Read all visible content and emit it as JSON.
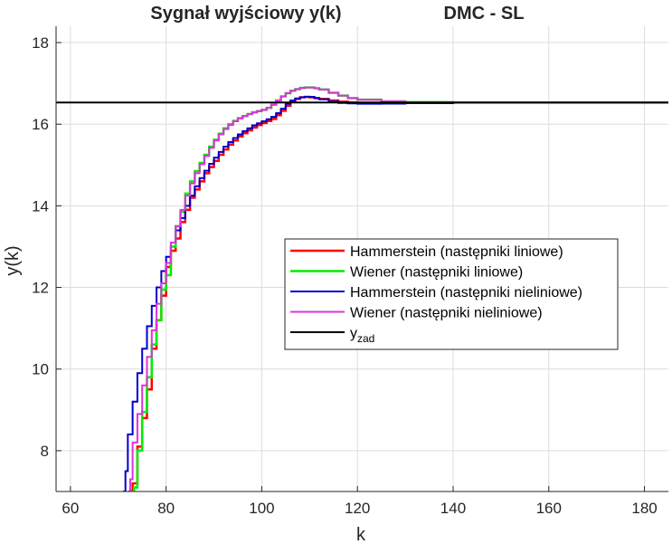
{
  "chart_data": {
    "type": "line",
    "title_left": "Sygnał wyjściowy y(k)",
    "title_right": "DMC - SL",
    "xlabel": "k",
    "ylabel": "y(k)",
    "xlim": [
      57,
      185
    ],
    "ylim": [
      7,
      18.4
    ],
    "xticks": [
      60,
      80,
      100,
      120,
      140,
      160,
      180
    ],
    "yticks": [
      8,
      10,
      12,
      14,
      16,
      18
    ],
    "grid": true,
    "legend_position": "center-right",
    "setpoint": 16.53,
    "series": [
      {
        "name": "Hammerstein (następniki liniowe)",
        "color": "#ff0000",
        "width": 2.5,
        "step": true,
        "points": [
          [
            72.5,
            7.0
          ],
          [
            73,
            7.2
          ],
          [
            74,
            8.1
          ],
          [
            75,
            8.8
          ],
          [
            76,
            9.5
          ],
          [
            77,
            10.5
          ],
          [
            78,
            11.2
          ],
          [
            79,
            11.8
          ],
          [
            80,
            12.5
          ],
          [
            81,
            12.9
          ],
          [
            82,
            13.2
          ],
          [
            83,
            13.6
          ],
          [
            84,
            13.9
          ],
          [
            85,
            14.2
          ],
          [
            86,
            14.4
          ],
          [
            87,
            14.6
          ],
          [
            88,
            14.8
          ],
          [
            89,
            14.95
          ],
          [
            90,
            15.1
          ],
          [
            91,
            15.25
          ],
          [
            92,
            15.38
          ],
          [
            93,
            15.5
          ],
          [
            94,
            15.6
          ],
          [
            95,
            15.7
          ],
          [
            96,
            15.78
          ],
          [
            97,
            15.85
          ],
          [
            98,
            15.92
          ],
          [
            99,
            15.98
          ],
          [
            100,
            16.03
          ],
          [
            101,
            16.08
          ],
          [
            102,
            16.13
          ],
          [
            103,
            16.22
          ],
          [
            104,
            16.33
          ],
          [
            105,
            16.45
          ],
          [
            106,
            16.55
          ],
          [
            107,
            16.62
          ],
          [
            108,
            16.66
          ],
          [
            109,
            16.67
          ],
          [
            110,
            16.66
          ],
          [
            111,
            16.64
          ],
          [
            112,
            16.62
          ],
          [
            114,
            16.58
          ],
          [
            116,
            16.55
          ],
          [
            118,
            16.53
          ],
          [
            120,
            16.52
          ],
          [
            125,
            16.515
          ],
          [
            130,
            16.52
          ],
          [
            140,
            16.53
          ],
          [
            185,
            16.53
          ]
        ]
      },
      {
        "name": "Wiener (następniki liniowe)",
        "color": "#00ee00",
        "width": 2.5,
        "step": true,
        "points": [
          [
            72.8,
            7.0
          ],
          [
            73.3,
            7.1
          ],
          [
            74,
            8.0
          ],
          [
            75,
            8.95
          ],
          [
            76,
            9.8
          ],
          [
            77,
            10.6
          ],
          [
            78,
            11.2
          ],
          [
            79,
            11.95
          ],
          [
            80,
            12.3
          ],
          [
            81,
            13.0
          ],
          [
            82,
            13.5
          ],
          [
            83,
            13.85
          ],
          [
            84,
            14.3
          ],
          [
            85,
            14.6
          ],
          [
            86,
            14.85
          ],
          [
            87,
            15.05
          ],
          [
            88,
            15.25
          ],
          [
            89,
            15.45
          ],
          [
            90,
            15.62
          ],
          [
            91,
            15.77
          ],
          [
            92,
            15.9
          ],
          [
            93,
            16.0
          ],
          [
            94,
            16.08
          ],
          [
            95,
            16.15
          ],
          [
            96,
            16.2
          ],
          [
            97,
            16.25
          ],
          [
            98,
            16.29
          ],
          [
            99,
            16.32
          ],
          [
            100,
            16.35
          ],
          [
            101,
            16.4
          ],
          [
            102,
            16.48
          ],
          [
            103,
            16.58
          ],
          [
            104,
            16.68
          ],
          [
            105,
            16.76
          ],
          [
            106,
            16.82
          ],
          [
            107,
            16.86
          ],
          [
            108,
            16.89
          ],
          [
            109,
            16.9
          ],
          [
            110,
            16.9
          ],
          [
            111,
            16.88
          ],
          [
            112,
            16.85
          ],
          [
            114,
            16.77
          ],
          [
            116,
            16.7
          ],
          [
            118,
            16.64
          ],
          [
            120,
            16.6
          ],
          [
            125,
            16.56
          ],
          [
            130,
            16.54
          ],
          [
            140,
            16.53
          ],
          [
            185,
            16.53
          ]
        ]
      },
      {
        "name": "Hammerstein (następniki nieliniowe)",
        "color": "#0000cc",
        "width": 2,
        "step": true,
        "points": [
          [
            71,
            7.0
          ],
          [
            71.5,
            7.5
          ],
          [
            72,
            8.4
          ],
          [
            73,
            9.2
          ],
          [
            74,
            9.9
          ],
          [
            75,
            10.5
          ],
          [
            76,
            11.05
          ],
          [
            77,
            11.55
          ],
          [
            78,
            12.0
          ],
          [
            79,
            12.4
          ],
          [
            80,
            12.75
          ],
          [
            81,
            13.1
          ],
          [
            82,
            13.4
          ],
          [
            83,
            13.7
          ],
          [
            84,
            14.0
          ],
          [
            85,
            14.25
          ],
          [
            86,
            14.48
          ],
          [
            87,
            14.68
          ],
          [
            88,
            14.86
          ],
          [
            89,
            15.03
          ],
          [
            90,
            15.18
          ],
          [
            91,
            15.32
          ],
          [
            92,
            15.45
          ],
          [
            93,
            15.56
          ],
          [
            94,
            15.66
          ],
          [
            95,
            15.75
          ],
          [
            96,
            15.83
          ],
          [
            97,
            15.9
          ],
          [
            98,
            15.97
          ],
          [
            99,
            16.02
          ],
          [
            100,
            16.07
          ],
          [
            101,
            16.12
          ],
          [
            102,
            16.18
          ],
          [
            103,
            16.27
          ],
          [
            104,
            16.38
          ],
          [
            105,
            16.5
          ],
          [
            106,
            16.58
          ],
          [
            107,
            16.63
          ],
          [
            108,
            16.66
          ],
          [
            109,
            16.67
          ],
          [
            110,
            16.67
          ],
          [
            111,
            16.64
          ],
          [
            112,
            16.61
          ],
          [
            114,
            16.56
          ],
          [
            116,
            16.52
          ],
          [
            118,
            16.51
          ],
          [
            120,
            16.5
          ],
          [
            125,
            16.505
          ],
          [
            130,
            16.515
          ],
          [
            140,
            16.525
          ],
          [
            185,
            16.53
          ]
        ]
      },
      {
        "name": "Wiener (następniki nieliniowe)",
        "color": "#dd33dd",
        "width": 2,
        "step": true,
        "points": [
          [
            72,
            7.0
          ],
          [
            72.5,
            7.3
          ],
          [
            73,
            8.2
          ],
          [
            74,
            8.9
          ],
          [
            75,
            9.6
          ],
          [
            76,
            10.3
          ],
          [
            77,
            10.95
          ],
          [
            78,
            11.6
          ],
          [
            79,
            12.1
          ],
          [
            80,
            12.6
          ],
          [
            81,
            13.1
          ],
          [
            82,
            13.5
          ],
          [
            83,
            13.9
          ],
          [
            84,
            14.25
          ],
          [
            85,
            14.55
          ],
          [
            86,
            14.8
          ],
          [
            87,
            15.02
          ],
          [
            88,
            15.22
          ],
          [
            89,
            15.42
          ],
          [
            90,
            15.6
          ],
          [
            91,
            15.75
          ],
          [
            92,
            15.88
          ],
          [
            93,
            15.98
          ],
          [
            94,
            16.07
          ],
          [
            95,
            16.14
          ],
          [
            96,
            16.2
          ],
          [
            97,
            16.25
          ],
          [
            98,
            16.29
          ],
          [
            99,
            16.32
          ],
          [
            100,
            16.35
          ],
          [
            101,
            16.4
          ],
          [
            102,
            16.48
          ],
          [
            103,
            16.58
          ],
          [
            104,
            16.68
          ],
          [
            105,
            16.76
          ],
          [
            106,
            16.82
          ],
          [
            107,
            16.86
          ],
          [
            108,
            16.89
          ],
          [
            109,
            16.9
          ],
          [
            110,
            16.9
          ],
          [
            111,
            16.88
          ],
          [
            112,
            16.85
          ],
          [
            114,
            16.77
          ],
          [
            116,
            16.7
          ],
          [
            118,
            16.64
          ],
          [
            120,
            16.6
          ],
          [
            125,
            16.56
          ],
          [
            130,
            16.54
          ],
          [
            140,
            16.53
          ],
          [
            185,
            16.53
          ]
        ]
      },
      {
        "name": "y",
        "name_sub": "zad",
        "color": "#000000",
        "width": 2,
        "step": false,
        "points": [
          [
            57,
            16.53
          ],
          [
            185,
            16.53
          ]
        ]
      }
    ]
  }
}
